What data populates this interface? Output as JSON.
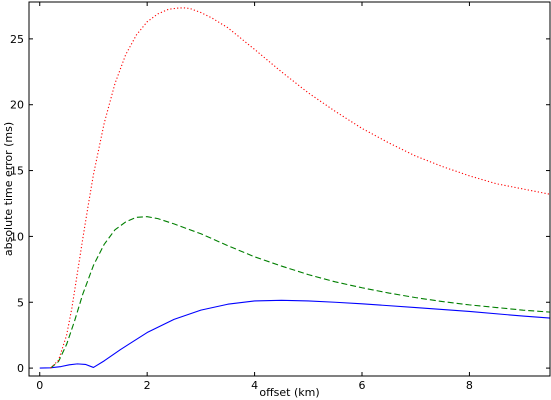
{
  "chart_data": {
    "type": "line",
    "title": "",
    "xlabel": "offset (km)",
    "ylabel": "absolute time error (ms)",
    "xlim": [
      -0.2,
      9.5
    ],
    "ylim": [
      -0.6,
      27.8
    ],
    "xticks": [
      0,
      2,
      4,
      6,
      8
    ],
    "yticks": [
      0,
      5,
      10,
      15,
      20,
      25
    ],
    "grid": false,
    "legend": "none",
    "series": [
      {
        "color": "#0000ff",
        "linestyle": "solid",
        "x": [
          0,
          0.2,
          0.4,
          0.55,
          0.7,
          0.85,
          1.0,
          1.2,
          1.5,
          2.0,
          2.5,
          3.0,
          3.5,
          4.0,
          4.5,
          5.0,
          5.5,
          6.0,
          7.0,
          8.0,
          9.0,
          9.5
        ],
        "y": [
          0.0,
          0.02,
          0.12,
          0.25,
          0.32,
          0.28,
          0.05,
          0.55,
          1.4,
          2.7,
          3.7,
          4.4,
          4.85,
          5.1,
          5.15,
          5.1,
          5.0,
          4.88,
          4.6,
          4.3,
          3.95,
          3.8
        ]
      },
      {
        "color": "#007f00",
        "linestyle": "dashed",
        "x": [
          0.2,
          0.35,
          0.5,
          0.65,
          0.8,
          1.0,
          1.2,
          1.4,
          1.6,
          1.8,
          2.0,
          2.2,
          2.5,
          3.0,
          3.5,
          4.0,
          4.5,
          5.0,
          5.5,
          6.0,
          6.5,
          7.0,
          7.5,
          8.0,
          8.5,
          9.0,
          9.5
        ],
        "y": [
          0.0,
          0.5,
          1.8,
          3.6,
          5.6,
          7.8,
          9.4,
          10.5,
          11.1,
          11.45,
          11.5,
          11.35,
          10.95,
          10.2,
          9.3,
          8.45,
          7.75,
          7.1,
          6.55,
          6.1,
          5.7,
          5.35,
          5.05,
          4.8,
          4.6,
          4.4,
          4.25
        ]
      },
      {
        "color": "#ff0000",
        "linestyle": "dotted",
        "x": [
          0.2,
          0.35,
          0.5,
          0.6,
          0.7,
          0.8,
          0.9,
          1.0,
          1.2,
          1.4,
          1.6,
          1.8,
          2.0,
          2.2,
          2.4,
          2.6,
          2.7,
          2.8,
          3.0,
          3.2,
          3.5,
          4.0,
          4.5,
          5.0,
          5.5,
          6.0,
          6.5,
          7.0,
          7.5,
          8.0,
          8.5,
          9.0,
          9.5
        ],
        "y": [
          0.0,
          0.6,
          2.5,
          4.6,
          7.2,
          9.8,
          12.3,
          14.7,
          18.6,
          21.6,
          23.8,
          25.3,
          26.3,
          26.9,
          27.25,
          27.35,
          27.35,
          27.3,
          27.0,
          26.6,
          25.85,
          24.2,
          22.5,
          20.9,
          19.5,
          18.2,
          17.1,
          16.1,
          15.3,
          14.6,
          14.0,
          13.6,
          13.2
        ]
      }
    ]
  }
}
